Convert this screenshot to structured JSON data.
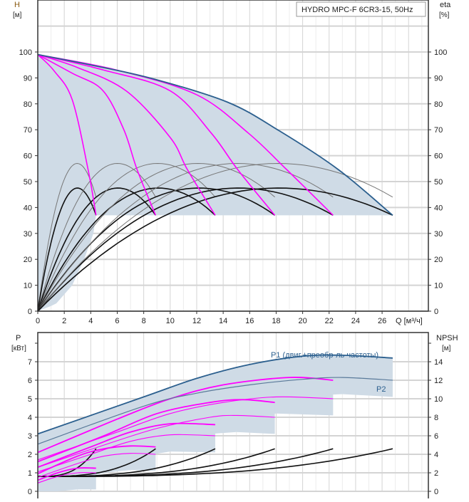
{
  "chart_data": [
    {
      "type": "line",
      "title": "HYDRO MPC-F 6CR3-15, 50Hz",
      "xlabel": "Q [м³/ч]",
      "ylabel": "H",
      "ylabel_unit": "[м]",
      "y2label": "eta",
      "y2label_unit": "[%]",
      "xlim": [
        0,
        29.5
      ],
      "ylim": [
        0,
        120
      ],
      "xticks": [
        0,
        2,
        4,
        6,
        8,
        10,
        12,
        14,
        16,
        18,
        20,
        22,
        24,
        26
      ],
      "yticks": [
        0,
        10,
        20,
        30,
        40,
        50,
        60,
        70,
        80,
        90,
        100
      ],
      "grid": true,
      "colors": {
        "max_curve": "#2b5f8e",
        "speed_curves": "#ff00ff",
        "eta": "#111111",
        "eta_thin": "#777777",
        "shade": "#cfdbe6"
      },
      "h_max_curve": [
        [
          0,
          99
        ],
        [
          4,
          95
        ],
        [
          8.6,
          89.8
        ],
        [
          14.3,
          80.7
        ],
        [
          18.2,
          69.7
        ],
        [
          22.7,
          54.6
        ],
        [
          26.8,
          37
        ]
      ],
      "h_speed_curves": [
        [
          [
            0,
            99
          ],
          [
            1.25,
            92.6
          ],
          [
            2.6,
            81.6
          ],
          [
            3.8,
            54.6
          ],
          [
            4.4,
            37
          ]
        ],
        [
          [
            0,
            99
          ],
          [
            2.6,
            91.8
          ],
          [
            4.9,
            85.2
          ],
          [
            6.5,
            70
          ],
          [
            7.5,
            54.6
          ],
          [
            8.9,
            37
          ]
        ],
        [
          [
            0,
            99
          ],
          [
            3,
            94
          ],
          [
            6.7,
            84.9
          ],
          [
            10,
            67
          ],
          [
            11.3,
            54.6
          ],
          [
            13.4,
            37
          ]
        ],
        [
          [
            0,
            99
          ],
          [
            5,
            93
          ],
          [
            10,
            85
          ],
          [
            13.1,
            68.7
          ],
          [
            15.1,
            54.6
          ],
          [
            17.9,
            37
          ]
        ],
        [
          [
            0,
            99
          ],
          [
            6,
            93
          ],
          [
            12,
            83.5
          ],
          [
            15.9,
            68.7
          ],
          [
            18.8,
            54.6
          ],
          [
            22.3,
            37
          ]
        ]
      ],
      "eta_end_flows": [
        4.4,
        8.9,
        13.4,
        17.9,
        22.3,
        26.8
      ],
      "eta_thick": {
        "peak": 47.5,
        "end": 37
      },
      "eta_thin": {
        "peak": 57,
        "end": 44
      },
      "shade_limit_h": 37
    },
    {
      "type": "line",
      "ylabel": "P",
      "ylabel_unit": "[кВт]",
      "y2label": "NPSH",
      "y2label_unit": "[м]",
      "xlim": [
        0,
        29.5
      ],
      "ylim": [
        0,
        8.5
      ],
      "yticks": [
        0,
        1,
        2,
        3,
        4,
        5,
        6,
        7
      ],
      "y2ticks": [
        0,
        2,
        4,
        6,
        8,
        10,
        12,
        14
      ],
      "grid": true,
      "p1_label": "P1 (двиг.+преобр-ль частоты)",
      "p2_label": "P2",
      "p1_max": [
        [
          0,
          3.1
        ],
        [
          8,
          5.1
        ],
        [
          12,
          6.1
        ],
        [
          16,
          6.85
        ],
        [
          20,
          7.3
        ],
        [
          23,
          7.35
        ],
        [
          26.8,
          7.2
        ]
      ],
      "p2_max": [
        [
          0,
          2.55
        ],
        [
          8,
          4.6
        ],
        [
          12,
          5.3
        ],
        [
          16,
          5.75
        ],
        [
          20,
          6.05
        ],
        [
          23,
          6.15
        ],
        [
          26.8,
          6.0
        ]
      ],
      "p1_speeds": [
        [
          [
            0,
            2.1
          ],
          [
            6,
            3.9
          ],
          [
            10,
            5.0
          ],
          [
            14,
            5.75
          ],
          [
            19,
            6.15
          ],
          [
            22.3,
            6.0
          ]
        ],
        [
          [
            0,
            1.6
          ],
          [
            5,
            3.0
          ],
          [
            9,
            4.2
          ],
          [
            13,
            4.8
          ],
          [
            15.5,
            4.95
          ],
          [
            17.9,
            4.8
          ]
        ],
        [
          [
            0,
            1.3
          ],
          [
            4,
            2.4
          ],
          [
            7,
            3.2
          ],
          [
            10,
            3.65
          ],
          [
            13.4,
            3.6
          ]
        ],
        [
          [
            0,
            0.95
          ],
          [
            3,
            1.9
          ],
          [
            5,
            2.3
          ],
          [
            7,
            2.45
          ],
          [
            8.9,
            2.4
          ]
        ],
        [
          [
            0,
            0.6
          ],
          [
            1.5,
            1.0
          ],
          [
            3,
            1.25
          ],
          [
            4.4,
            1.25
          ]
        ]
      ],
      "p2_speeds": [
        [
          [
            0,
            1.7
          ],
          [
            6,
            3.2
          ],
          [
            10,
            4.2
          ],
          [
            14,
            4.8
          ],
          [
            18,
            5.1
          ],
          [
            22.3,
            5.0
          ]
        ],
        [
          [
            0,
            1.3
          ],
          [
            5,
            2.5
          ],
          [
            9,
            3.4
          ],
          [
            13,
            4.0
          ],
          [
            15,
            4.1
          ],
          [
            17.9,
            4.0
          ]
        ],
        [
          [
            0,
            1.05
          ],
          [
            4,
            2.0
          ],
          [
            7,
            2.7
          ],
          [
            10,
            3.05
          ],
          [
            13.4,
            3.0
          ]
        ],
        [
          [
            0,
            0.75
          ],
          [
            3,
            1.5
          ],
          [
            5,
            1.9
          ],
          [
            7,
            2.05
          ],
          [
            8.9,
            2.0
          ]
        ],
        [
          [
            0,
            0.45
          ],
          [
            1.5,
            0.8
          ],
          [
            3,
            1.0
          ],
          [
            4.4,
            1.0
          ]
        ]
      ],
      "npsh_end_flows": [
        4.4,
        8.9,
        13.4,
        17.9,
        22.3,
        26.8
      ],
      "npsh_start": 1.6,
      "npsh_end": 4.6
    }
  ]
}
